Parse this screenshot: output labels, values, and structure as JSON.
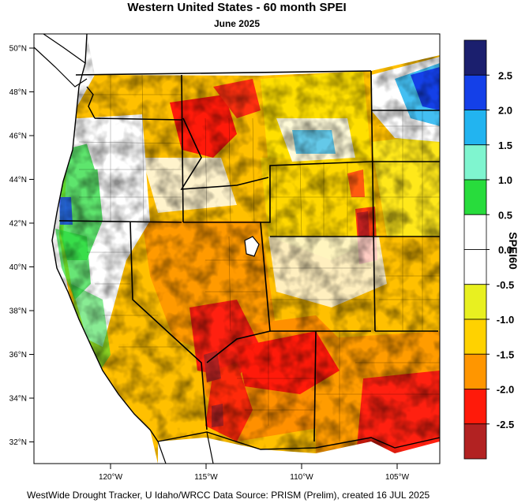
{
  "title": "Western United States - 60 month SPEI",
  "subtitle": "June 2025",
  "footer": "WestWide Drought Tracker, U Idaho/WRCC Data Source: PRISM (Prelim), created 16 JUL 2025",
  "colorbar": {
    "title": "SPEI60",
    "labels": [
      "2.5",
      "2.0",
      "1.5",
      "1.0",
      "0.5",
      "0.0",
      "-0.5",
      "-1.0",
      "-1.5",
      "-2.0",
      "-2.5"
    ],
    "colors": [
      "#1b1f6e",
      "#1440e8",
      "#22b4f0",
      "#7ff5cf",
      "#28dc3c",
      "#ffffff",
      "#ffffff",
      "#e8f020",
      "#ffd200",
      "#ff9600",
      "#ff1a0a",
      "#b22222"
    ]
  },
  "lat_labels": [
    "50°N",
    "48°N",
    "46°N",
    "44°N",
    "42°N",
    "40°N",
    "38°N",
    "36°N",
    "34°N",
    "32°N"
  ],
  "lon_labels": [
    "120°W",
    "115°W",
    "110°W",
    "105°W"
  ]
}
